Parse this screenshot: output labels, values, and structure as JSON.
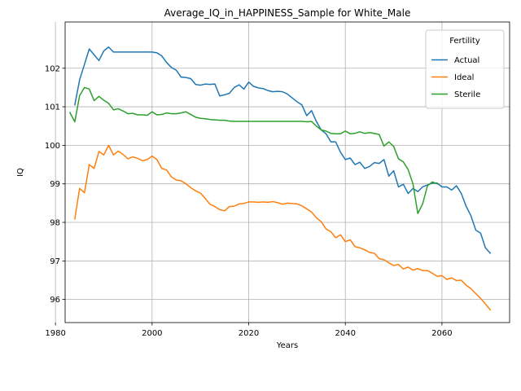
{
  "chart_data": {
    "type": "line",
    "title": "Average_IQ_in_HAPPINESS_Sample for White_Male",
    "xlabel": "Years",
    "ylabel": "IQ",
    "xlim": [
      1982,
      2074
    ],
    "ylim": [
      95.4,
      103.2
    ],
    "xticks": [
      1980,
      2000,
      2020,
      2040,
      2060
    ],
    "yticks": [
      96,
      97,
      98,
      99,
      100,
      101,
      102
    ],
    "grid": true,
    "legend": {
      "title": "Fertility",
      "placement": "top-right"
    },
    "series": [
      {
        "name": "Actual",
        "color": "#1f77b4",
        "x": [
          1984,
          1985,
          1986,
          1987,
          1988,
          1989,
          1990,
          1991,
          1992,
          1993,
          1994,
          1995,
          1996,
          1997,
          1998,
          1999,
          2000,
          2001,
          2002,
          2003,
          2004,
          2005,
          2006,
          2007,
          2008,
          2009,
          2010,
          2011,
          2012,
          2013,
          2014,
          2015,
          2016,
          2017,
          2018,
          2019,
          2020,
          2021,
          2022,
          2023,
          2024,
          2025,
          2026,
          2027,
          2028,
          2029,
          2030,
          2031,
          2032,
          2033,
          2034,
          2035,
          2036,
          2037,
          2038,
          2039,
          2040,
          2041,
          2042,
          2043,
          2044,
          2045,
          2046,
          2047,
          2048,
          2049,
          2050,
          2051,
          2052,
          2053,
          2054,
          2055,
          2056,
          2057,
          2058,
          2059,
          2060,
          2061,
          2062,
          2063,
          2064,
          2065,
          2066,
          2067,
          2068,
          2069,
          2070
        ],
        "y": [
          101.05,
          101.7,
          102.1,
          102.5,
          102.35,
          102.2,
          102.45,
          102.55,
          102.42,
          102.42,
          102.42,
          102.42,
          102.42,
          102.42,
          102.42,
          102.42,
          102.42,
          102.4,
          102.32,
          102.15,
          102.02,
          101.95,
          101.77,
          101.76,
          101.73,
          101.58,
          101.56,
          101.59,
          101.58,
          101.59,
          101.28,
          101.31,
          101.35,
          101.5,
          101.57,
          101.46,
          101.64,
          101.53,
          101.49,
          101.47,
          101.42,
          101.39,
          101.4,
          101.39,
          101.33,
          101.23,
          101.13,
          101.05,
          100.77,
          100.9,
          100.62,
          100.4,
          100.3,
          100.09,
          100.09,
          99.82,
          99.63,
          99.67,
          99.5,
          99.56,
          99.4,
          99.45,
          99.55,
          99.53,
          99.63,
          99.2,
          99.34,
          98.92,
          98.99,
          98.75,
          98.88,
          98.8,
          98.92,
          98.97,
          99.02,
          99.02,
          98.92,
          98.92,
          98.84,
          98.95,
          98.75,
          98.42,
          98.17,
          97.8,
          97.72,
          97.34,
          97.2
        ]
      },
      {
        "name": "Ideal",
        "color": "#ff7f0e",
        "x": [
          1984,
          1985,
          1986,
          1987,
          1988,
          1989,
          1990,
          1991,
          1992,
          1993,
          1994,
          1995,
          1996,
          1997,
          1998,
          1999,
          2000,
          2001,
          2002,
          2003,
          2004,
          2005,
          2006,
          2007,
          2008,
          2009,
          2010,
          2011,
          2012,
          2013,
          2014,
          2015,
          2016,
          2017,
          2018,
          2019,
          2020,
          2021,
          2022,
          2023,
          2024,
          2025,
          2026,
          2027,
          2028,
          2029,
          2030,
          2031,
          2032,
          2033,
          2034,
          2035,
          2036,
          2037,
          2038,
          2039,
          2040,
          2041,
          2042,
          2043,
          2044,
          2045,
          2046,
          2047,
          2048,
          2049,
          2050,
          2051,
          2052,
          2053,
          2054,
          2055,
          2056,
          2057,
          2058,
          2059,
          2060,
          2061,
          2062,
          2063,
          2064,
          2065,
          2066,
          2067,
          2068,
          2069,
          2070
        ],
        "y": [
          98.09,
          98.88,
          98.77,
          99.5,
          99.4,
          99.84,
          99.75,
          100.0,
          99.75,
          99.85,
          99.76,
          99.65,
          99.7,
          99.66,
          99.6,
          99.63,
          99.72,
          99.63,
          99.4,
          99.36,
          99.18,
          99.1,
          99.08,
          99.0,
          98.9,
          98.82,
          98.76,
          98.62,
          98.47,
          98.41,
          98.33,
          98.3,
          98.41,
          98.42,
          98.48,
          98.49,
          98.53,
          98.53,
          98.52,
          98.53,
          98.52,
          98.54,
          98.51,
          98.47,
          98.5,
          98.49,
          98.48,
          98.43,
          98.35,
          98.27,
          98.12,
          98.02,
          97.83,
          97.76,
          97.6,
          97.68,
          97.5,
          97.55,
          97.37,
          97.34,
          97.29,
          97.22,
          97.2,
          97.06,
          97.03,
          96.95,
          96.88,
          96.91,
          96.79,
          96.84,
          96.76,
          96.8,
          96.75,
          96.75,
          96.68,
          96.6,
          96.62,
          96.52,
          96.56,
          96.49,
          96.5,
          96.37,
          96.28,
          96.15,
          96.03,
          95.88,
          95.73
        ]
      },
      {
        "name": "Sterile",
        "color": "#2ca02c",
        "x": [
          1983,
          1984,
          1985,
          1986,
          1987,
          1988,
          1989,
          1990,
          1991,
          1992,
          1993,
          1994,
          1995,
          1996,
          1997,
          1998,
          1999,
          2000,
          2001,
          2002,
          2003,
          2004,
          2005,
          2006,
          2007,
          2008,
          2009,
          2010,
          2011,
          2012,
          2013,
          2014,
          2015,
          2016,
          2017,
          2018,
          2019,
          2020,
          2021,
          2022,
          2023,
          2024,
          2025,
          2026,
          2027,
          2028,
          2029,
          2030,
          2031,
          2032,
          2033,
          2034,
          2035,
          2036,
          2037,
          2038,
          2039,
          2040,
          2041,
          2042,
          2043,
          2044,
          2045,
          2046,
          2047,
          2048,
          2049,
          2050,
          2051,
          2052,
          2053,
          2054,
          2055,
          2056,
          2057,
          2058,
          2059
        ],
        "y": [
          100.85,
          100.61,
          101.29,
          101.5,
          101.46,
          101.16,
          101.27,
          101.17,
          101.09,
          100.92,
          100.95,
          100.89,
          100.82,
          100.83,
          100.79,
          100.79,
          100.78,
          100.87,
          100.79,
          100.8,
          100.84,
          100.82,
          100.82,
          100.84,
          100.87,
          100.8,
          100.73,
          100.7,
          100.69,
          100.67,
          100.66,
          100.65,
          100.65,
          100.63,
          100.62,
          100.62,
          100.62,
          100.62,
          100.62,
          100.62,
          100.62,
          100.62,
          100.62,
          100.62,
          100.62,
          100.62,
          100.62,
          100.62,
          100.62,
          100.61,
          100.62,
          100.5,
          100.4,
          100.37,
          100.31,
          100.3,
          100.3,
          100.37,
          100.3,
          100.31,
          100.35,
          100.31,
          100.33,
          100.31,
          100.28,
          99.98,
          100.09,
          99.97,
          99.65,
          99.57,
          99.37,
          99.0,
          98.23,
          98.48,
          98.95,
          99.05,
          99.0
        ]
      }
    ]
  }
}
